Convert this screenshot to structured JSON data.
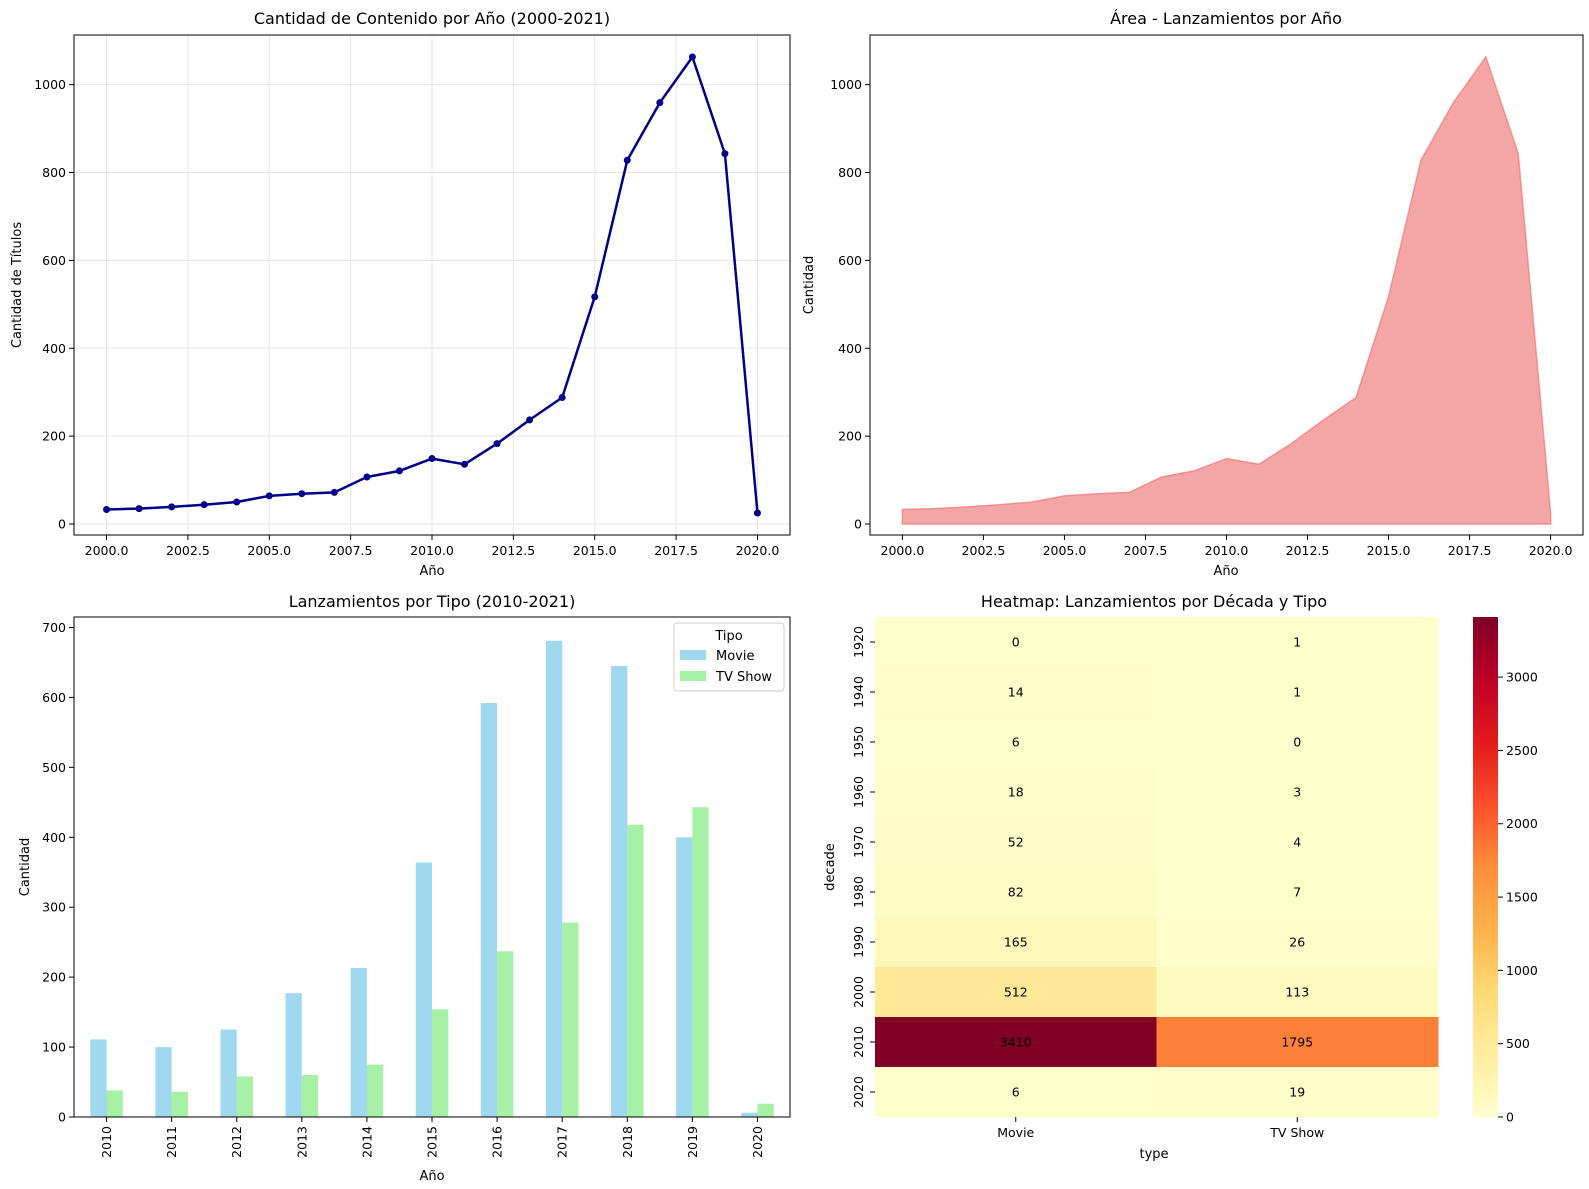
{
  "chart_data": [
    {
      "type": "line",
      "title": "Cantidad de Contenido por Año (2000-2021)",
      "xlabel": "Año",
      "ylabel": "Cantidad de Títulos",
      "x": [
        2000,
        2001,
        2002,
        2003,
        2004,
        2005,
        2006,
        2007,
        2008,
        2009,
        2010,
        2011,
        2012,
        2013,
        2014,
        2015,
        2016,
        2017,
        2018,
        2019,
        2020
      ],
      "values": [
        33,
        35,
        39,
        44,
        50,
        64,
        69,
        72,
        107,
        121,
        149,
        136,
        183,
        237,
        288,
        517,
        828,
        959,
        1063,
        843,
        25
      ],
      "xlim": [
        1999,
        2021
      ],
      "ylim": [
        -25,
        1113
      ],
      "xticks": [
        "2000.0",
        "2002.5",
        "2005.0",
        "2007.5",
        "2010.0",
        "2012.5",
        "2015.0",
        "2017.5",
        "2020.0"
      ],
      "yticks": [
        "0",
        "200",
        "400",
        "600",
        "800",
        "1000"
      ],
      "grid": true,
      "color": "#00008b"
    },
    {
      "type": "area",
      "title": "Área - Lanzamientos por Año",
      "xlabel": "Año",
      "ylabel": "Cantidad",
      "x": [
        2000,
        2001,
        2002,
        2003,
        2004,
        2005,
        2006,
        2007,
        2008,
        2009,
        2010,
        2011,
        2012,
        2013,
        2014,
        2015,
        2016,
        2017,
        2018,
        2019,
        2020
      ],
      "values": [
        33,
        35,
        39,
        44,
        50,
        64,
        69,
        72,
        107,
        121,
        149,
        136,
        183,
        237,
        288,
        517,
        828,
        959,
        1063,
        843,
        25
      ],
      "xlim": [
        1999,
        2021
      ],
      "ylim": [
        -25,
        1113
      ],
      "xticks": [
        "2000.0",
        "2002.5",
        "2005.0",
        "2007.5",
        "2010.0",
        "2012.5",
        "2015.0",
        "2017.5",
        "2020.0"
      ],
      "yticks": [
        "0",
        "200",
        "400",
        "600",
        "800",
        "1000"
      ],
      "grid": false,
      "color": "#f08080"
    },
    {
      "type": "bar",
      "title": "Lanzamientos por Tipo (2010-2021)",
      "xlabel": "Año",
      "ylabel": "Cantidad",
      "categories": [
        "2010",
        "2011",
        "2012",
        "2013",
        "2014",
        "2015",
        "2016",
        "2017",
        "2018",
        "2019",
        "2020"
      ],
      "series": [
        {
          "name": "Movie",
          "color": "#87ceeb",
          "values": [
            111,
            100,
            125,
            177,
            213,
            364,
            592,
            681,
            645,
            400,
            6
          ]
        },
        {
          "name": "TV Show",
          "color": "#90ee90",
          "values": [
            38,
            36,
            58,
            60,
            75,
            154,
            237,
            278,
            418,
            443,
            19
          ]
        }
      ],
      "ylim": [
        0,
        715
      ],
      "yticks": [
        "0",
        "100",
        "200",
        "300",
        "400",
        "500",
        "600",
        "700"
      ],
      "legend": {
        "title": "Tipo",
        "placement": "upper-right"
      }
    },
    {
      "type": "heatmap",
      "title": "Heatmap: Lanzamientos por Década y Tipo",
      "xlabel": "type",
      "ylabel": "decade",
      "columns": [
        "Movie",
        "TV Show"
      ],
      "rows": [
        "1920",
        "1940",
        "1950",
        "1960",
        "1970",
        "1980",
        "1990",
        "2000",
        "2010",
        "2020"
      ],
      "values": [
        [
          0,
          1
        ],
        [
          14,
          1
        ],
        [
          6,
          0
        ],
        [
          18,
          3
        ],
        [
          52,
          4
        ],
        [
          82,
          7
        ],
        [
          165,
          26
        ],
        [
          512,
          113
        ],
        [
          3410,
          1795
        ],
        [
          6,
          19
        ]
      ],
      "colormap": "YlOrRd",
      "colorbar_range": [
        0,
        3410
      ],
      "colorbar_ticks": [
        "0",
        "500",
        "1000",
        "1500",
        "2000",
        "2500",
        "3000"
      ]
    }
  ]
}
